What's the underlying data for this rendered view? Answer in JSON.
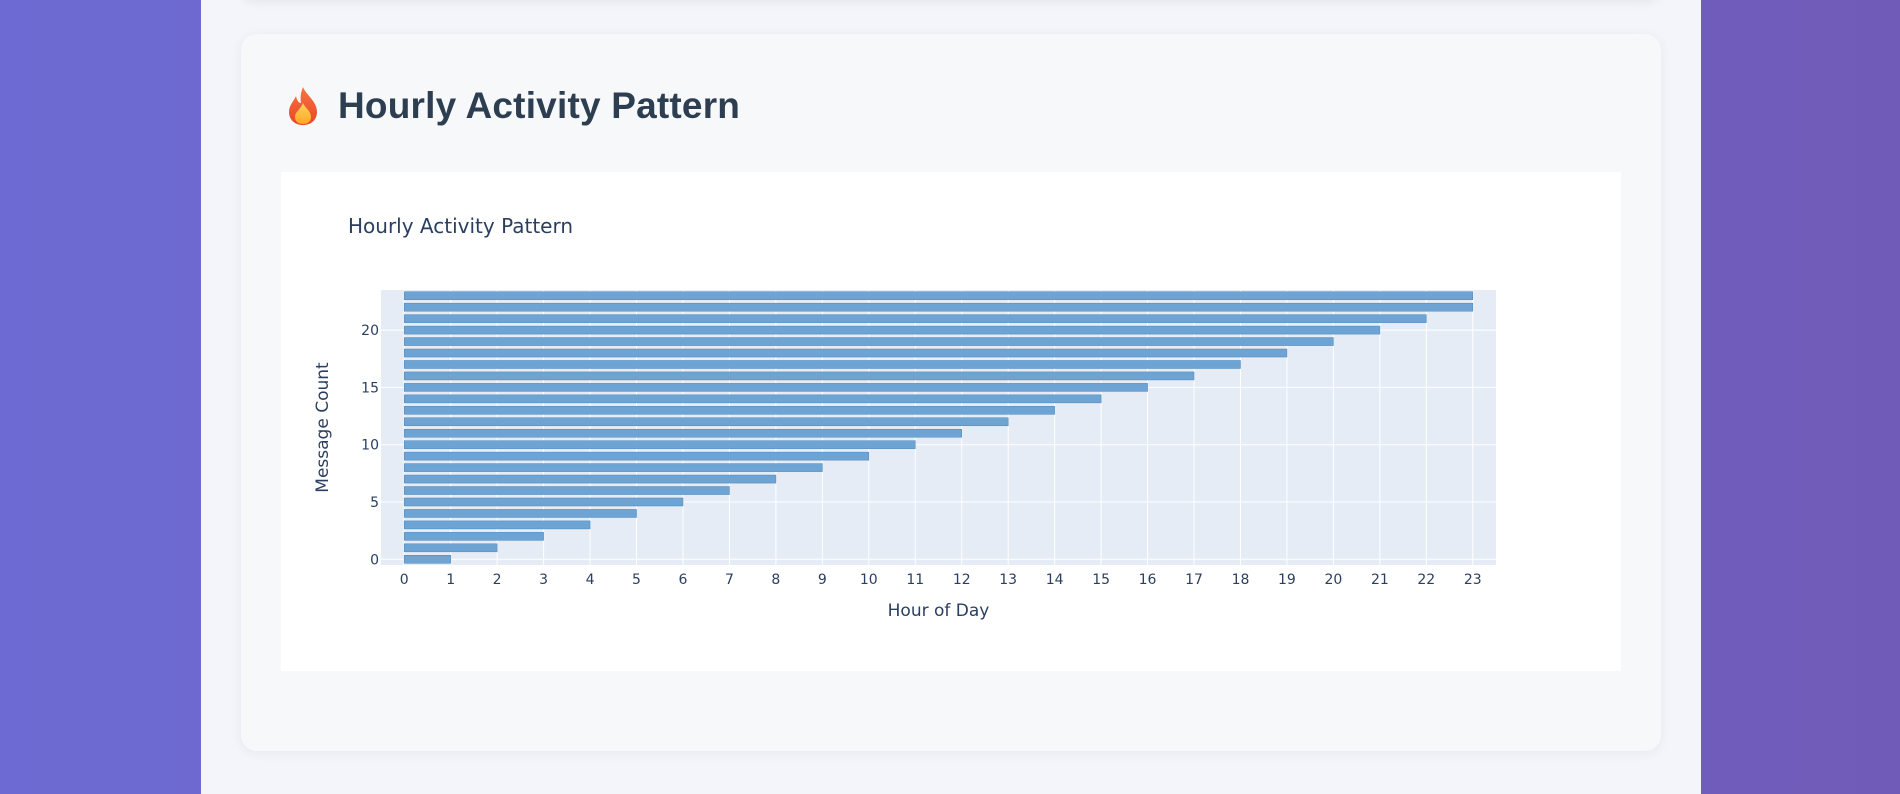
{
  "section": {
    "icon": "fire-icon",
    "title": "Hourly Activity Pattern"
  },
  "colors": {
    "background_gradient": [
      "#6d6bd3",
      "#715bb8"
    ],
    "title_text": "#2c3e50",
    "plot_bg": "#e5ecf6",
    "bar": "#6ea4d3",
    "bar_outline": "#4e86bb",
    "axis_text": "#2a3f5f"
  },
  "chart_data": {
    "type": "bar",
    "orientation": "horizontal",
    "title": "Hourly Activity Pattern",
    "xlabel": "Hour of Day",
    "ylabel": "Message Count",
    "x_ticks": [
      0,
      1,
      2,
      3,
      4,
      5,
      6,
      7,
      8,
      9,
      10,
      11,
      12,
      13,
      14,
      15,
      16,
      17,
      18,
      19,
      20,
      21,
      22,
      23
    ],
    "y_ticks": [
      0,
      5,
      10,
      15,
      20
    ],
    "xlim": [
      -0.5,
      23.5
    ],
    "ylim": [
      -0.5,
      23.5
    ],
    "grid": true,
    "legend": false,
    "series": [
      {
        "y": [
          0,
          1,
          2,
          3,
          4,
          5,
          6,
          7,
          8,
          9,
          10,
          11,
          12,
          13,
          14,
          15,
          16,
          17,
          18,
          19,
          20,
          21,
          22,
          23
        ],
        "x": [
          1,
          2,
          3,
          4,
          5,
          6,
          7,
          8,
          9,
          10,
          11,
          12,
          13,
          14,
          15,
          16,
          17,
          18,
          19,
          20,
          21,
          22,
          23,
          23
        ]
      }
    ]
  }
}
